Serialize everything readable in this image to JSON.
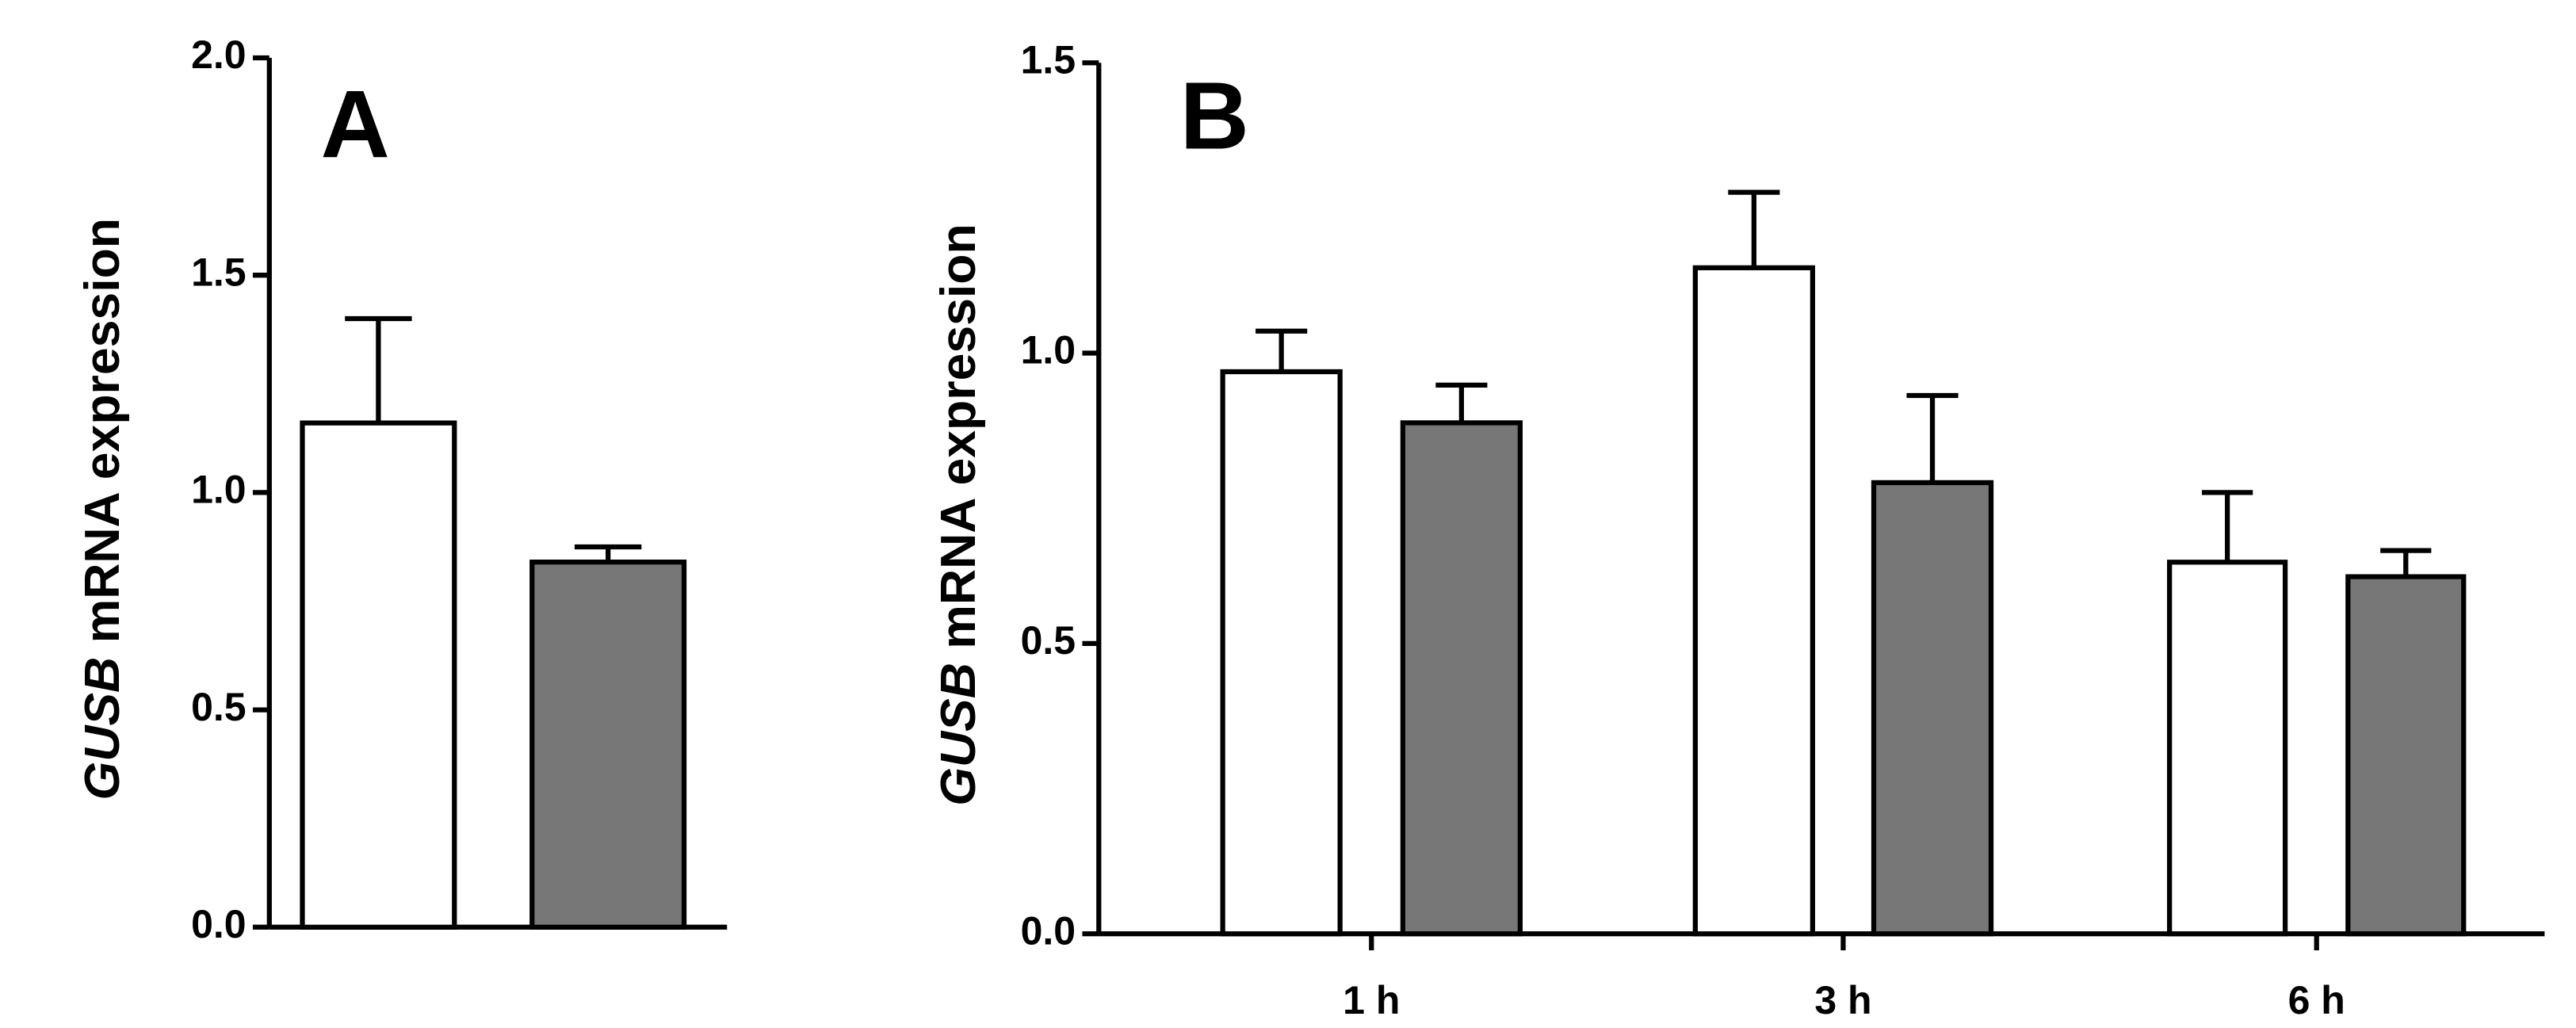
{
  "chart_data": [
    {
      "type": "bar",
      "label": "A",
      "ylabel": {
        "italic": "GUSB",
        "rest": "mRNA expression"
      },
      "categories": [
        null,
        null
      ],
      "series": [
        {
          "color": "#ffffff",
          "values": [
            1.16,
            null
          ],
          "errors": [
            0.24,
            null
          ]
        },
        {
          "color": "#777777",
          "values": [
            null,
            0.84
          ],
          "errors": [
            null,
            0.035
          ]
        }
      ],
      "ylim": [
        0,
        2
      ],
      "yticks": [
        {
          "value": 0,
          "label": "0.0"
        },
        0.5,
        {
          "value": 1,
          "label": "1.0"
        },
        1.5,
        {
          "value": 2,
          "label": "2.0"
        }
      ]
    },
    {
      "type": "bar",
      "label": "B",
      "ylabel": {
        "italic": "GUSB",
        "rest": "mRNA expression"
      },
      "categories": [
        "1 h",
        "3 h",
        "6 h"
      ],
      "series": [
        {
          "color": "#ffffff",
          "values": [
            0.968,
            1.147,
            0.64
          ],
          "errors": [
            0.07,
            0.13,
            0.12
          ]
        },
        {
          "color": "#777777",
          "values": [
            0.88,
            0.777,
            0.615
          ],
          "errors": [
            0.065,
            0.15,
            0.045
          ]
        }
      ],
      "ylim": [
        0,
        1.5
      ],
      "yticks": [
        {
          "value": 0,
          "label": "0.0"
        },
        0.5,
        {
          "value": 1,
          "label": "1.0"
        },
        1.5
      ]
    }
  ]
}
